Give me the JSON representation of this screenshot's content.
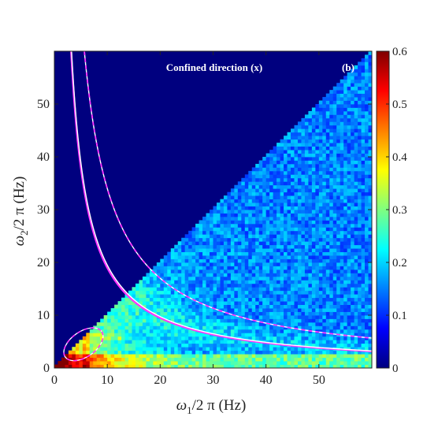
{
  "chart_data": {
    "type": "heatmap",
    "title": "Confined direction (x)",
    "panel_label": "(b)",
    "xlabel": {
      "symbol": "ω",
      "sub": "1",
      "rest": "/2 π (Hz)"
    },
    "ylabel": {
      "symbol": "ω",
      "sub": "2",
      "rest": "/2 π (Hz)"
    },
    "xlim": [
      0,
      60
    ],
    "ylim": [
      0,
      60
    ],
    "xticks": [
      0,
      10,
      20,
      30,
      40,
      50
    ],
    "yticks": [
      0,
      10,
      20,
      30,
      40,
      50
    ],
    "colorbar": {
      "min": 0,
      "max": 0.6,
      "ticks": [
        "0",
        "0.1",
        "0.2",
        "0.3",
        "0.4",
        "0.5",
        "0.6"
      ],
      "colormap": "jet"
    },
    "region": "values shown below diagonal (ω2 < ω1 side), zero above",
    "curves": [
      {
        "kind": "magenta-solid",
        "product": 190
      },
      {
        "kind": "white-solid",
        "product": 195
      },
      {
        "kind": "white-dashed-magenta",
        "product": 340
      }
    ],
    "ellipse": {
      "cx": 5.5,
      "cy": 4.5,
      "rx": 4.2,
      "ry": 2.4,
      "angle_deg": -35
    }
  }
}
